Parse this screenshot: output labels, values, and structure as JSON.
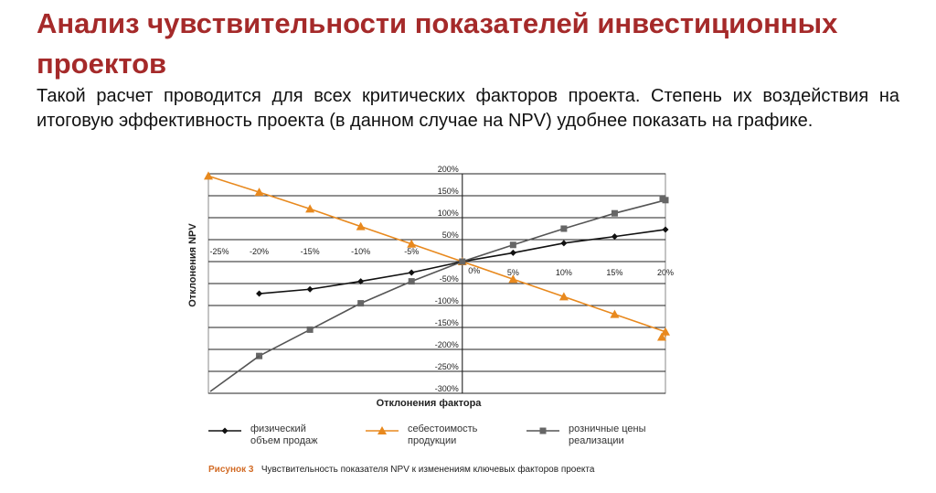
{
  "slide": {
    "title": "Анализ чувствительности показателей инвестиционных проектов",
    "body": "Такой расчет проводится для всех критических факторов проекта. Степень их воздействия на итоговую эффективность проекта (в данном случае на NPV) удобнее показать на графике."
  },
  "chart_data": {
    "type": "line",
    "xlabel": "Отклонения фактора",
    "ylabel": "Отклонения NPV",
    "xlim": [
      -25,
      20
    ],
    "ylim": [
      -300,
      200
    ],
    "x_tick_labels": [
      "-25%",
      "-20%",
      "-15%",
      "-10%",
      "-5%",
      "0%",
      "5%",
      "10%",
      "15%",
      "20%"
    ],
    "y_tick_labels": [
      "200%",
      "150%",
      "100%",
      "50%",
      "0%",
      "-50%",
      "-100%",
      "-150%",
      "-200%",
      "-250%",
      "-300%"
    ],
    "grid": true,
    "legend_placement": "bottom",
    "series": [
      {
        "name": "физический объем продаж",
        "marker": "diamond",
        "color": "#111111",
        "x": [
          -20,
          -15,
          -10,
          -5,
          0,
          5,
          10,
          15,
          20
        ],
        "y": [
          -73,
          -63,
          -45,
          -25,
          0,
          20,
          42,
          57,
          73
        ]
      },
      {
        "name": "себестоимость продукции",
        "marker": "triangle",
        "color": "#e8891e",
        "x": [
          -25,
          -20,
          -15,
          -10,
          -5,
          0,
          5,
          10,
          15,
          20
        ],
        "y": [
          195,
          158,
          120,
          80,
          40,
          0,
          -40,
          -80,
          -120,
          -160
        ]
      },
      {
        "name": "розничные цены реализации",
        "marker": "square",
        "color": "#666666",
        "x": [
          -20,
          -15,
          -10,
          -5,
          0,
          5,
          10,
          15,
          20
        ],
        "y": [
          -215,
          -155,
          -95,
          -45,
          0,
          38,
          75,
          110,
          140
        ]
      }
    ],
    "legend_labels": [
      [
        "физический",
        "объем продаж"
      ],
      [
        "себестоимость",
        "продукции"
      ],
      [
        "розничные цены",
        "реализации"
      ]
    ],
    "caption_lead": "Рисунок 3",
    "caption_text": "Чувствительность показателя NPV к изменениям ключевых факторов проекта"
  }
}
